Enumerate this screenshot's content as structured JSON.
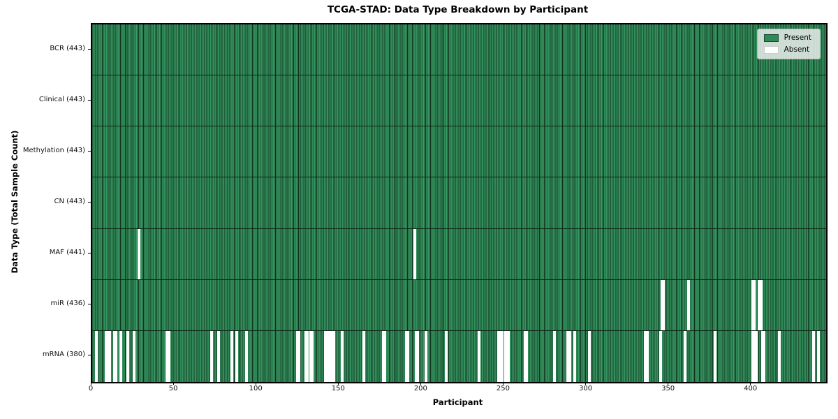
{
  "chart_data": {
    "type": "heatmap",
    "title": "TCGA-STAD: Data Type Breakdown by Participant",
    "xlabel": "Participant",
    "ylabel": "Data Type (Total Sample Count)",
    "xlim": [
      0,
      445
    ],
    "n_participants": 443,
    "x_ticks": [
      0,
      50,
      100,
      150,
      200,
      250,
      300,
      350,
      400
    ],
    "grid": false,
    "legend_position": "upper right",
    "colors": {
      "present": "#2e8b57",
      "absent": "#ffffff",
      "bar_edge": "#11331f",
      "row_separator": "#0d2416",
      "plot_border": "#000000",
      "legend_bg": "#eaeeec",
      "legend_border": "#b5b5b5"
    },
    "legend": [
      {
        "label": "Present",
        "color": "#2e8b57"
      },
      {
        "label": "Absent",
        "color": "#ffffff"
      }
    ],
    "rows": [
      {
        "label": "BCR (443)",
        "present_count": 443,
        "absent_participants": []
      },
      {
        "label": "Clinical (443)",
        "present_count": 443,
        "absent_participants": []
      },
      {
        "label": "Methylation (443)",
        "present_count": 443,
        "absent_participants": []
      },
      {
        "label": "CN (443)",
        "present_count": 443,
        "absent_participants": []
      },
      {
        "label": "MAF (441)",
        "present_count": 441,
        "absent_participants": [
          28,
          195
        ]
      },
      {
        "label": "miR (436)",
        "present_count": 436,
        "absent_participants": [
          345,
          346,
          361,
          400,
          401,
          404,
          405
        ]
      },
      {
        "label": "mRNA (380)",
        "present_count": 380,
        "absent_participants": [
          2,
          8,
          9,
          10,
          13,
          14,
          17,
          21,
          25,
          45,
          46,
          72,
          76,
          84,
          87,
          93,
          124,
          125,
          129,
          130,
          132,
          133,
          141,
          142,
          144,
          145,
          146,
          151,
          164,
          176,
          177,
          190,
          191,
          196,
          197,
          202,
          214,
          234,
          246,
          247,
          248,
          250,
          252,
          262,
          263,
          280,
          288,
          289,
          292,
          301,
          335,
          336,
          344,
          359,
          377,
          400,
          401,
          402,
          406,
          407,
          416,
          437,
          440
        ]
      }
    ]
  }
}
